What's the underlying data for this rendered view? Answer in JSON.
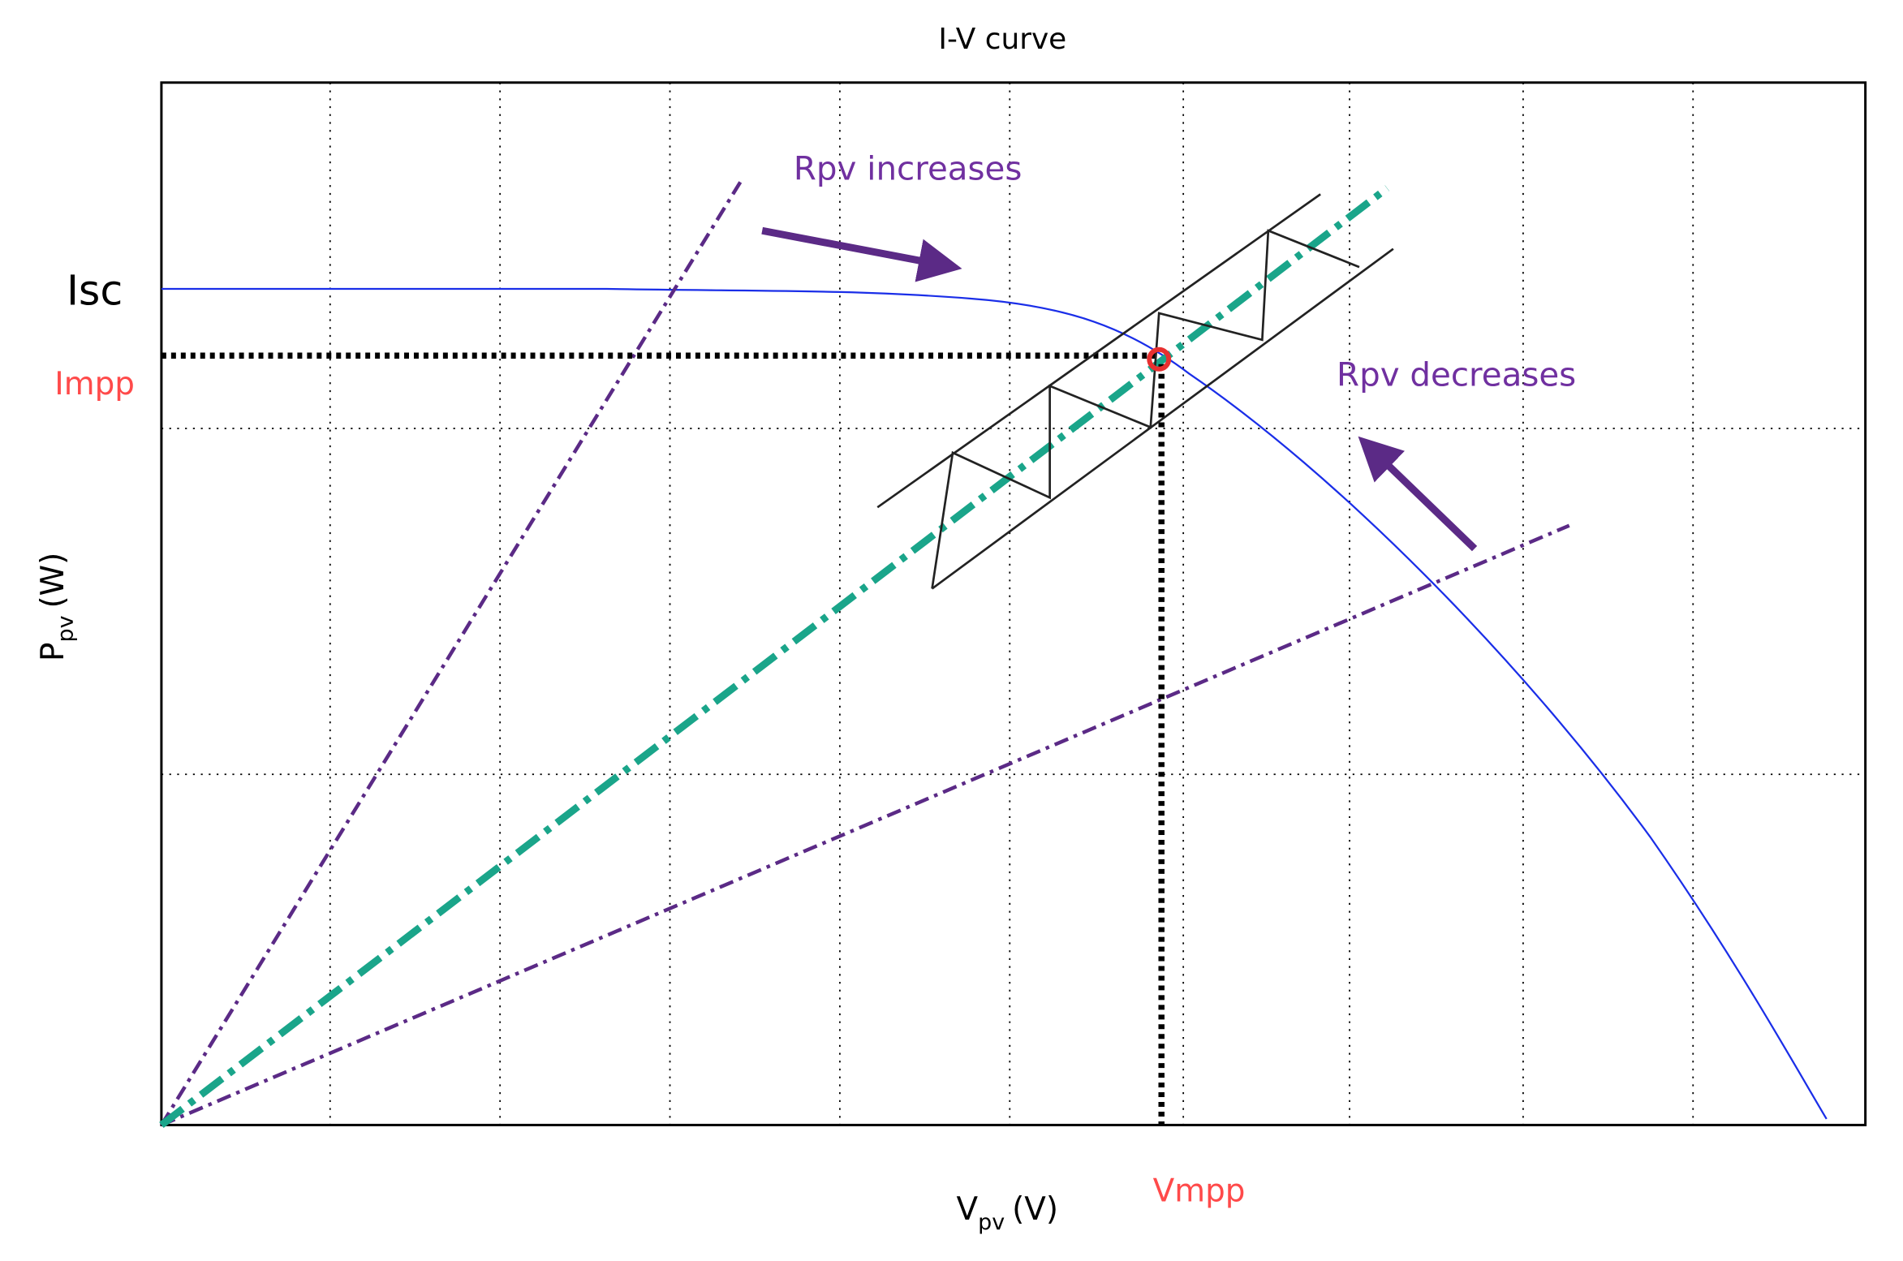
{
  "title": "I-V curve",
  "y_axis": {
    "main": "P",
    "sub": "pv",
    "unit": "(W)"
  },
  "x_axis": {
    "main": "V",
    "sub": "pv",
    "unit": "(V)"
  },
  "labels": {
    "isc": "Isc",
    "impp": "Impp",
    "vmpp": "Vmpp"
  },
  "annotations": {
    "increase": "Rpv increases",
    "decrease": "Rpv decreases"
  }
}
